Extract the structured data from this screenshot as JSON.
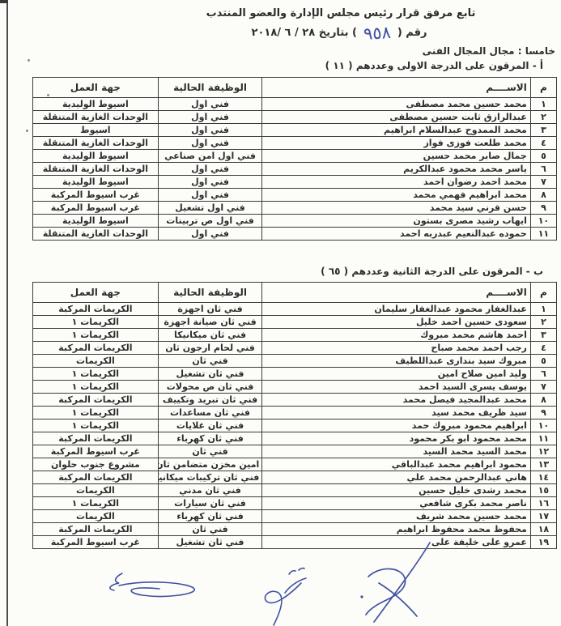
{
  "colors": {
    "ink": "#2d2d2d",
    "pen_blue": "#3f51a3",
    "paper": "#fcfcf8"
  },
  "header": {
    "line1": "تابع مرفق قرار رئيس مجلس الإدارة والعضو المنتدب",
    "decree_prefix": "رقم (",
    "decree_number_handwritten": "٩٥٨",
    "decree_suffix": ") بتاريخ  ٢٨ / ٦ /٢٠١٨",
    "section_title": "خامسا : مجال المجال الفنى"
  },
  "icons": {
    "signatures": [
      "handwritten-signature-right",
      "handwritten-signature-middle",
      "handwritten-signature-left"
    ]
  },
  "sections": [
    {
      "label": "أ - المرقون على الدرجة الاولى وعددهم ( ١١  )",
      "headers": {
        "num": "م",
        "name": "الاســــم",
        "job": "الوظيفة  الحالية",
        "org": "جهة العمل"
      },
      "rows": [
        {
          "num": "١",
          "name": "محمد حسين محمد مصطفى",
          "job": "فني اول",
          "org": "اسيوط الوليدية"
        },
        {
          "num": "٢",
          "name": "عبدالرازق ثابت حسين مصطفى",
          "job": "فني اول",
          "org": "الوحدات الغازية المتنقلة"
        },
        {
          "num": "٣",
          "name": "محمد الممدوح عبدالسلام ابراهيم",
          "job": "فني اول",
          "org": "اسيوط"
        },
        {
          "num": "٤",
          "name": "محمد طلعت فوزى فواز",
          "job": "فني اول",
          "org": "الوحدات الغازية المتنقلة"
        },
        {
          "num": "٥",
          "name": "جمال صابر محمد حسين",
          "job": "فني اول امن صناعي",
          "org": "اسيوط الوليدية"
        },
        {
          "num": "٦",
          "name": "ياسر محمد  محمود عبدالكريم",
          "job": "فني اول",
          "org": "الوحدات الغازية المتنقلة"
        },
        {
          "num": "٧",
          "name": "محمد احمد رضوان احمد",
          "job": "فني اول",
          "org": "اسيوط الوليدية"
        },
        {
          "num": "٨",
          "name": "محمد ابراهيم فهمي محمد",
          "job": "فني اول",
          "org": "غرب اسيوط المركبة"
        },
        {
          "num": "٩",
          "name": "حسن قرني سيد محمد",
          "job": "فني اول تشغيل",
          "org": "غرب اسيوط المركبة"
        },
        {
          "num": "١٠",
          "name": "ايهاب رشيد مصرى بستون",
          "job": "فني اول ص تربينات",
          "org": "اسيوط الوليدية"
        },
        {
          "num": "١١",
          "name": "حموده عبدالنعيم عبدربه احمد",
          "job": "فني اول",
          "org": "الوحدات الغازية المتنقلة"
        }
      ]
    },
    {
      "label": "ب - المرقون على الدرجة الثانية وعددهم ( ٦٥ )",
      "headers": {
        "num": "م",
        "name": "الاســــم",
        "job": "الوظيفة  الحالية",
        "org": "جهة العمل"
      },
      "rows": [
        {
          "num": "١",
          "name": "عبدالغفار محمود عبدالغفار سليمان",
          "job": "فني ثان اجهزة",
          "org": "الكريمات المركبة"
        },
        {
          "num": "٢",
          "name": "سعودى حسين احمد خليل",
          "job": "فني ثان صيانة اجهزة",
          "org": "الكريمات ١"
        },
        {
          "num": "٣",
          "name": "احمد هاشم محمد مبروك",
          "job": "فني ثان ميكانيكا",
          "org": "الكريمات ١"
        },
        {
          "num": "٤",
          "name": "رجب احمد محمد صباح",
          "job": "فني  لحام ارجون ثان",
          "org": "الكريمات المركبة"
        },
        {
          "num": "٥",
          "name": "مبروك سيد بندارى عبداللطيف",
          "job": "فني ثان",
          "org": "الكريمات"
        },
        {
          "num": "٦",
          "name": "وليد امين صلاح امين",
          "job": "فني ثان تشغيل",
          "org": "الكريمات ١"
        },
        {
          "num": "٧",
          "name": "يوسف يسرى السيد احمد",
          "job": "فني ثان ص محولات",
          "org": "الكريمات ١"
        },
        {
          "num": "٨",
          "name": "محمد عبدالمجيد فيصل محمد",
          "job": "فني ثان تبريد وتكييف",
          "org": "الكريمات المركبة"
        },
        {
          "num": "٩",
          "name": "سيد ظريف محمد سيد",
          "job": "فني ثان مساعدات",
          "org": "الكريمات ١"
        },
        {
          "num": "١٠",
          "name": "ابراهيم محمود مبروك حمد",
          "job": "فني ثان غلايات",
          "org": "الكريمات ١"
        },
        {
          "num": "١١",
          "name": "محمد محمود ابو بكر محمود",
          "job": "فني ثان كهرباء",
          "org": "الكريمات المركبة"
        },
        {
          "num": "١٢",
          "name": "محمد السيد محمد السيد",
          "job": "فني ثان",
          "org": "غرب اسيوط المركبة"
        },
        {
          "num": "١٣",
          "name": "محمود ابراهيم محمد عبدالباقي",
          "job": "امين مخزن متضامن ثان",
          "org": "مشروع جنوب حلوان"
        },
        {
          "num": "١٤",
          "name": "هاني عبدالرحمن محمد علي",
          "job": "فني ثان تركيبات ميكانيكية",
          "org": "الكريمات المركبة"
        },
        {
          "num": "١٥",
          "name": "محمد رشدى خليل حسين",
          "job": "فني ثان مدني",
          "org": "الكريمات"
        },
        {
          "num": "١٦",
          "name": "ناصر محمد بكرى شافعي",
          "job": "فني ثان سيارات",
          "org": "الكريمات ١"
        },
        {
          "num": "١٧",
          "name": "محمد حسين محمد شريف",
          "job": "فني ثان كهرباء",
          "org": "الكريمات"
        },
        {
          "num": "١٨",
          "name": "محفوظ محمد محفوظ ابراهيم",
          "job": "فني ثان",
          "org": "الكريمات المركبة"
        },
        {
          "num": "١٩",
          "name": "عمرو على خليفة على",
          "job": "فني ثان تشغيل",
          "org": "غرب اسيوط المركبة"
        }
      ]
    }
  ]
}
